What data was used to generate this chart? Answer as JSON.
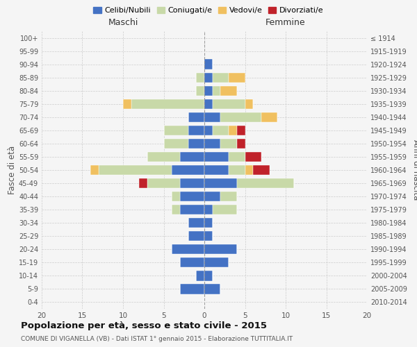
{
  "age_groups": [
    "0-4",
    "5-9",
    "10-14",
    "15-19",
    "20-24",
    "25-29",
    "30-34",
    "35-39",
    "40-44",
    "45-49",
    "50-54",
    "55-59",
    "60-64",
    "65-69",
    "70-74",
    "75-79",
    "80-84",
    "85-89",
    "90-94",
    "95-99",
    "100+"
  ],
  "birth_years": [
    "2010-2014",
    "2005-2009",
    "2000-2004",
    "1995-1999",
    "1990-1994",
    "1985-1989",
    "1980-1984",
    "1975-1979",
    "1970-1974",
    "1965-1969",
    "1960-1964",
    "1955-1959",
    "1950-1954",
    "1945-1949",
    "1940-1944",
    "1935-1939",
    "1930-1934",
    "1925-1929",
    "1920-1924",
    "1915-1919",
    "≤ 1914"
  ],
  "male": {
    "celibi": [
      0,
      3,
      1,
      3,
      4,
      2,
      2,
      3,
      3,
      3,
      4,
      3,
      2,
      2,
      2,
      0,
      0,
      0,
      0,
      0,
      0
    ],
    "coniugati": [
      0,
      0,
      0,
      0,
      0,
      0,
      0,
      1,
      1,
      4,
      9,
      4,
      3,
      3,
      0,
      9,
      1,
      1,
      0,
      0,
      0
    ],
    "vedovi": [
      0,
      0,
      0,
      0,
      0,
      0,
      0,
      0,
      0,
      0,
      1,
      0,
      0,
      0,
      0,
      1,
      0,
      0,
      0,
      0,
      0
    ],
    "divorziati": [
      0,
      0,
      0,
      0,
      0,
      0,
      0,
      0,
      0,
      1,
      0,
      0,
      0,
      0,
      0,
      0,
      0,
      0,
      0,
      0,
      0
    ]
  },
  "female": {
    "celibi": [
      0,
      2,
      1,
      3,
      4,
      1,
      1,
      1,
      2,
      4,
      3,
      3,
      2,
      1,
      2,
      1,
      1,
      1,
      1,
      0,
      0
    ],
    "coniugati": [
      0,
      0,
      0,
      0,
      0,
      0,
      0,
      3,
      2,
      7,
      2,
      2,
      2,
      2,
      5,
      4,
      1,
      2,
      0,
      0,
      0
    ],
    "vedovi": [
      0,
      0,
      0,
      0,
      0,
      0,
      0,
      0,
      0,
      0,
      1,
      0,
      0,
      1,
      2,
      1,
      2,
      2,
      0,
      0,
      0
    ],
    "divorziati": [
      0,
      0,
      0,
      0,
      0,
      0,
      0,
      0,
      0,
      0,
      2,
      2,
      1,
      1,
      0,
      0,
      0,
      0,
      0,
      0,
      0
    ]
  },
  "colors": {
    "celibi": "#4472C4",
    "coniugati": "#c8d9a8",
    "vedovi": "#f0c060",
    "divorziati": "#c0222a"
  },
  "legend_labels": [
    "Celibi/Nubili",
    "Coniugati/e",
    "Vedovi/e",
    "Divorziati/e"
  ],
  "title": "Popolazione per età, sesso e stato civile - 2015",
  "subtitle": "COMUNE DI VIGANELLA (VB) - Dati ISTAT 1° gennaio 2015 - Elaborazione TUTTITALIA.IT",
  "xlabel_left": "Maschi",
  "xlabel_right": "Femmine",
  "ylabel_left": "Fasce di età",
  "ylabel_right": "Anni di nascita",
  "xlim": 20,
  "background_color": "#f5f5f5"
}
